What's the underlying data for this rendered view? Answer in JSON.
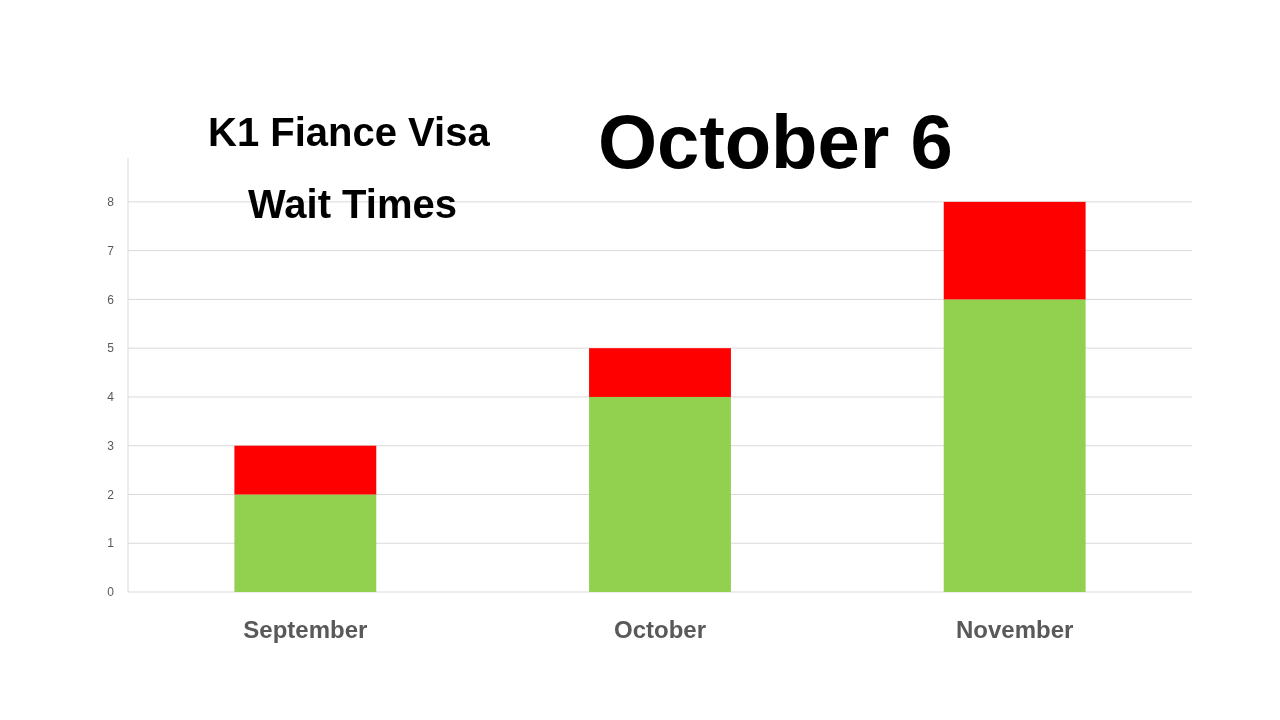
{
  "chart_data": {
    "type": "bar",
    "title": "K1 Fiance Visa",
    "subtitle": "Wait Times",
    "annotations": [
      "October 6"
    ],
    "categories": [
      "September",
      "October",
      "November"
    ],
    "stacked": true,
    "series": [
      {
        "color": "#92d050",
        "values": [
          2,
          4,
          6
        ]
      },
      {
        "color": "#ff0000",
        "values": [
          1,
          1,
          2
        ]
      }
    ],
    "ylim": [
      0,
      8.9
    ],
    "yticks": [
      0,
      1,
      2,
      3,
      4,
      5,
      6,
      7,
      8
    ],
    "grid": "y"
  }
}
